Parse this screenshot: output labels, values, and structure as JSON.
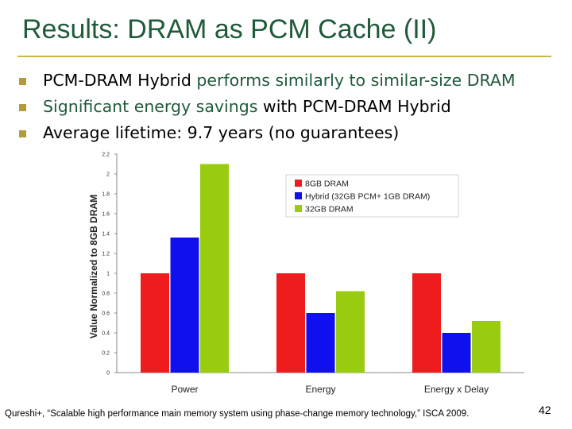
{
  "title": "Results: DRAM as PCM Cache (II)",
  "bullets": [
    [
      {
        "text": "PCM-DRAM Hybrid ",
        "hl": false
      },
      {
        "text": "performs similarly to similar-size DRAM",
        "hl": true
      }
    ],
    [
      {
        "text": "Significant energy savings",
        "hl": true
      },
      {
        "text": " with PCM-DRAM Hybrid",
        "hl": false
      }
    ],
    [
      {
        "text": "Average lifetime: 9.7 years (no guarantees)",
        "hl": false
      }
    ]
  ],
  "colors": {
    "title": "#1f5a3a",
    "bullet": "#b39b3a",
    "rule": "#c8b44c",
    "dram8": "#ee1c1c",
    "hybrid": "#1010ee",
    "dram32": "#99cc10"
  },
  "chart_data": {
    "type": "bar",
    "categories": [
      "Power",
      "Energy",
      "Energy x Delay"
    ],
    "series": [
      {
        "name": "8GB DRAM",
        "values": [
          1.0,
          1.0,
          1.0
        ],
        "color": "#ee1c1c"
      },
      {
        "name": "Hybrid (32GB PCM+ 1GB DRAM)",
        "values": [
          1.36,
          0.6,
          0.4
        ],
        "color": "#1010ee"
      },
      {
        "name": "32GB DRAM",
        "values": [
          2.1,
          0.82,
          0.52
        ],
        "color": "#99cc10"
      }
    ],
    "ylabel": "Value Normalized to 8GB DRAM",
    "ylim": [
      0,
      2.2
    ],
    "yticks": [
      "0",
      "0.2",
      "0.4",
      "0.6",
      "0.8",
      "1",
      "1.2",
      "1.4",
      "1.6",
      "1.8",
      "2",
      "2.2"
    ],
    "legend_position": "top-right",
    "grid": false
  },
  "citation": "Qureshi+, “Scalable high performance main memory system using phase-change memory technology,” ISCA 2009.",
  "page_number": "42"
}
